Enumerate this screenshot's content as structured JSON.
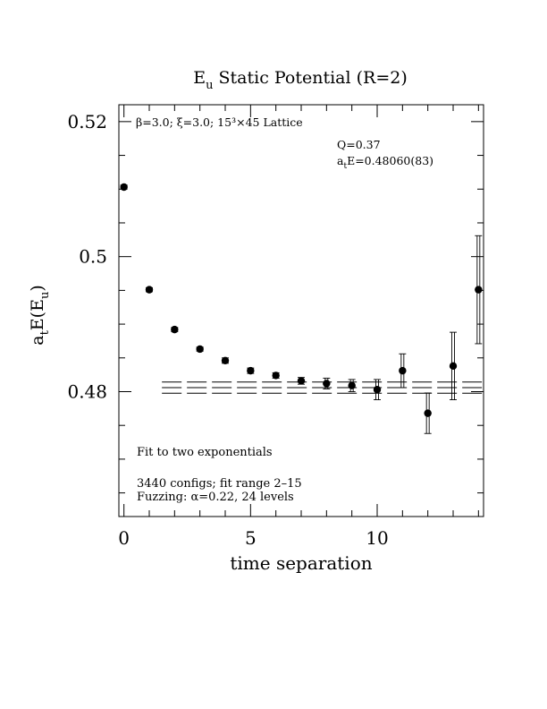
{
  "chart_data": {
    "type": "scatter",
    "title": "E<sub>u</sub> Static Potential (R=2)",
    "title_parts": {
      "pre": "E",
      "sub": "u",
      "post": " Static Potential (R=2)"
    },
    "xlabel": "time separation",
    "ylabel": "a_tE(E_u)",
    "ylabel_parts": {
      "a": "a",
      "t": "t",
      "mid": "E(E",
      "u": "u",
      "end": ")"
    },
    "xlim": [
      -0.2,
      14.2
    ],
    "ylim": [
      0.4615,
      0.5225
    ],
    "x_ticks": [
      0,
      5,
      10
    ],
    "x_tick_labels": [
      "0",
      "5",
      "10"
    ],
    "y_ticks": [
      0.48,
      0.5,
      0.52
    ],
    "y_tick_labels": [
      "0.48",
      "0.5",
      "0.52"
    ],
    "points": [
      {
        "x": 0,
        "y": 0.5103,
        "err": 0.0003
      },
      {
        "x": 1,
        "y": 0.4951,
        "err": 0.0003
      },
      {
        "x": 2,
        "y": 0.4892,
        "err": 0.0003
      },
      {
        "x": 3,
        "y": 0.4863,
        "err": 0.0003
      },
      {
        "x": 4,
        "y": 0.4846,
        "err": 0.0004
      },
      {
        "x": 5,
        "y": 0.4831,
        "err": 0.0004
      },
      {
        "x": 6,
        "y": 0.4824,
        "err": 0.0004
      },
      {
        "x": 7,
        "y": 0.4816,
        "err": 0.0005
      },
      {
        "x": 8,
        "y": 0.4812,
        "err": 0.0008
      },
      {
        "x": 9,
        "y": 0.4809,
        "err": 0.0009
      },
      {
        "x": 10,
        "y": 0.4803,
        "err": 0.0015
      },
      {
        "x": 11,
        "y": 0.4831,
        "err": 0.0025
      },
      {
        "x": 12,
        "y": 0.4768,
        "err": 0.003
      },
      {
        "x": 13,
        "y": 0.4838,
        "err": 0.005
      },
      {
        "x": 14,
        "y": 0.4951,
        "err": 0.008
      }
    ],
    "fit": {
      "range": [
        1.5,
        14.2
      ],
      "value": 0.4806,
      "err": 0.00083
    },
    "annotations": {
      "lattice": "β=3.0; ξ=3.0; 15³×45 Lattice",
      "q": "Q=0.37",
      "energy": "a<sub>t</sub>E=0.48060(83)",
      "energy_parts": {
        "a": "a",
        "t": "t",
        "rest": "E=0.48060(83)"
      },
      "fit_desc": "Fit to two exponentials",
      "configs": "3440 configs; fit range 2–15",
      "fuzzing": "Fuzzing: α=0.22, 24 levels"
    }
  }
}
